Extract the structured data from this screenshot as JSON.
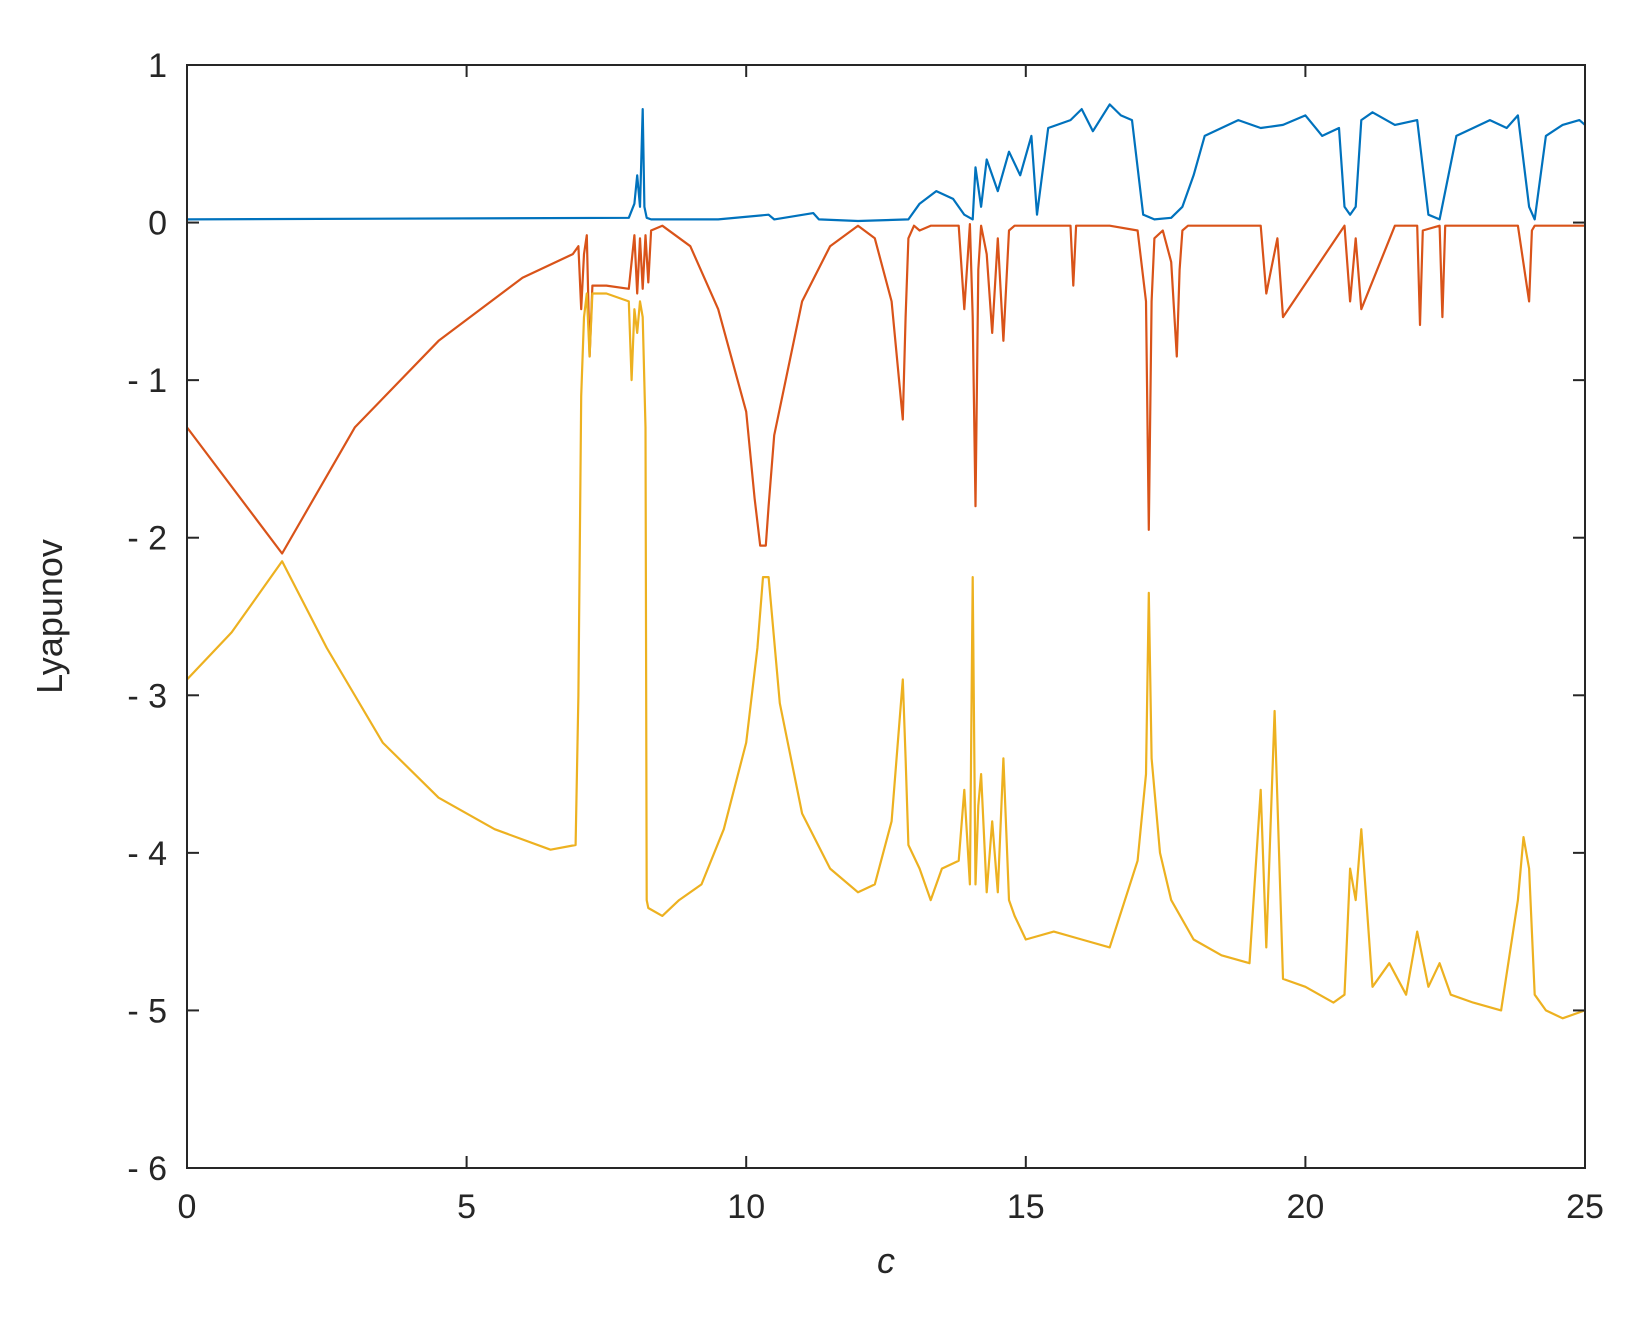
{
  "chart_data": {
    "type": "line",
    "title": "",
    "xlabel": "c",
    "ylabel": "Lyapunov",
    "xlim": [
      0,
      25
    ],
    "ylim": [
      -6,
      1
    ],
    "xticks": [
      0,
      5,
      10,
      15,
      20,
      25
    ],
    "xtick_labels": [
      "0",
      "5",
      "10",
      "15",
      "20",
      "25"
    ],
    "yticks": [
      1,
      0,
      -1,
      -2,
      -3,
      -4,
      -5,
      -6
    ],
    "ytick_labels": [
      "1",
      "0",
      "- 1",
      "- 2",
      "- 3",
      "- 4",
      "- 5",
      "- 6"
    ],
    "grid": false,
    "legend": "none",
    "series": [
      {
        "color": "#0072BD",
        "x": [
          0,
          7.9,
          8.0,
          8.05,
          8.1,
          8.15,
          8.18,
          8.22,
          8.3,
          9.5,
          10.4,
          10.5,
          11.2,
          11.3,
          12.0,
          12.9,
          13.1,
          13.4,
          13.7,
          13.9,
          14.05,
          14.1,
          14.2,
          14.3,
          14.5,
          14.7,
          14.9,
          15.1,
          15.2,
          15.4,
          15.8,
          16.0,
          16.2,
          16.5,
          16.7,
          16.9,
          17.1,
          17.3,
          17.6,
          17.8,
          18.0,
          18.2,
          18.5,
          18.8,
          19.2,
          19.6,
          20.0,
          20.3,
          20.6,
          20.7,
          20.8,
          20.9,
          21.0,
          21.2,
          21.6,
          22.0,
          22.2,
          22.4,
          22.7,
          23.0,
          23.3,
          23.6,
          23.8,
          24.0,
          24.1,
          24.3,
          24.6,
          24.9,
          25.0
        ],
        "y": [
          0.02,
          0.03,
          0.12,
          0.3,
          0.1,
          0.72,
          0.1,
          0.03,
          0.02,
          0.02,
          0.05,
          0.02,
          0.06,
          0.02,
          0.01,
          0.02,
          0.12,
          0.2,
          0.15,
          0.05,
          0.02,
          0.35,
          0.1,
          0.4,
          0.2,
          0.45,
          0.3,
          0.55,
          0.05,
          0.6,
          0.65,
          0.72,
          0.58,
          0.75,
          0.68,
          0.65,
          0.05,
          0.02,
          0.03,
          0.1,
          0.3,
          0.55,
          0.6,
          0.65,
          0.6,
          0.62,
          0.68,
          0.55,
          0.6,
          0.1,
          0.05,
          0.1,
          0.65,
          0.7,
          0.62,
          0.65,
          0.05,
          0.02,
          0.55,
          0.6,
          0.65,
          0.6,
          0.68,
          0.1,
          0.02,
          0.55,
          0.62,
          0.65,
          0.62
        ]
      },
      {
        "color": "#D95319",
        "x": [
          0,
          1.7,
          3,
          4.5,
          6,
          6.9,
          7.0,
          7.05,
          7.1,
          7.15,
          7.2,
          7.25,
          7.5,
          7.9,
          8.0,
          8.05,
          8.1,
          8.15,
          8.2,
          8.25,
          8.3,
          8.5,
          9,
          9.5,
          10,
          10.15,
          10.25,
          10.3,
          10.35,
          10.4,
          10.5,
          11,
          11.5,
          12,
          12.3,
          12.6,
          12.8,
          12.85,
          12.9,
          13.0,
          13.1,
          13.3,
          13.8,
          13.9,
          14.0,
          14.05,
          14.1,
          14.15,
          14.2,
          14.3,
          14.4,
          14.5,
          14.6,
          14.7,
          14.8,
          15.2,
          15.8,
          15.85,
          15.9,
          16.5,
          17.0,
          17.15,
          17.2,
          17.25,
          17.3,
          17.45,
          17.6,
          17.7,
          17.75,
          17.8,
          17.9,
          18.2,
          19.2,
          19.3,
          19.5,
          19.6,
          20.7,
          20.8,
          20.9,
          21.0,
          21.6,
          22.0,
          22.05,
          22.1,
          22.4,
          22.45,
          22.5,
          23.8,
          24.0,
          24.05,
          24.1,
          24.3,
          25.0
        ],
        "y": [
          -1.3,
          -2.1,
          -1.3,
          -0.75,
          -0.35,
          -0.2,
          -0.15,
          -0.55,
          -0.2,
          -0.08,
          -0.85,
          -0.4,
          -0.4,
          -0.42,
          -0.08,
          -0.45,
          -0.1,
          -0.42,
          -0.08,
          -0.38,
          -0.05,
          -0.02,
          -0.15,
          -0.55,
          -1.2,
          -1.75,
          -2.05,
          -2.05,
          -2.05,
          -1.8,
          -1.35,
          -0.5,
          -0.15,
          -0.02,
          -0.1,
          -0.5,
          -1.25,
          -0.6,
          -0.1,
          -0.02,
          -0.05,
          -0.02,
          -0.02,
          -0.55,
          -0.01,
          -0.6,
          -1.8,
          -0.3,
          -0.02,
          -0.2,
          -0.7,
          -0.1,
          -0.75,
          -0.05,
          -0.02,
          -0.02,
          -0.02,
          -0.4,
          -0.02,
          -0.02,
          -0.05,
          -0.5,
          -1.95,
          -0.5,
          -0.1,
          -0.05,
          -0.25,
          -0.85,
          -0.3,
          -0.05,
          -0.02,
          -0.02,
          -0.02,
          -0.45,
          -0.1,
          -0.6,
          -0.02,
          -0.5,
          -0.1,
          -0.55,
          -0.02,
          -0.02,
          -0.65,
          -0.05,
          -0.02,
          -0.6,
          -0.02,
          -0.02,
          -0.5,
          -0.05,
          -0.02,
          -0.02,
          -0.02
        ]
      },
      {
        "color": "#EDB120",
        "x": [
          0,
          0.8,
          1.7,
          2.5,
          3.5,
          4.5,
          5.5,
          6.5,
          6.95,
          7.0,
          7.05,
          7.1,
          7.15,
          7.2,
          7.25,
          7.5,
          7.9,
          7.95,
          8.0,
          8.05,
          8.1,
          8.15,
          8.2,
          8.22,
          8.25,
          8.5,
          8.8,
          9.2,
          9.6,
          10.0,
          10.2,
          10.3,
          10.4,
          10.6,
          11.0,
          11.5,
          12.0,
          12.3,
          12.6,
          12.8,
          12.85,
          12.9,
          13.1,
          13.3,
          13.5,
          13.8,
          13.9,
          14.0,
          14.05,
          14.1,
          14.15,
          14.2,
          14.3,
          14.4,
          14.5,
          14.6,
          14.7,
          14.8,
          15.0,
          15.5,
          16.0,
          16.5,
          17.0,
          17.15,
          17.2,
          17.25,
          17.4,
          17.6,
          18.0,
          18.5,
          19.0,
          19.2,
          19.3,
          19.45,
          19.6,
          20.0,
          20.5,
          20.7,
          20.8,
          20.9,
          21.0,
          21.2,
          21.5,
          21.8,
          22.0,
          22.2,
          22.4,
          22.6,
          23.0,
          23.5,
          23.8,
          23.9,
          24.0,
          24.1,
          24.3,
          24.6,
          25.0
        ],
        "y": [
          -2.9,
          -2.6,
          -2.15,
          -2.7,
          -3.3,
          -3.65,
          -3.85,
          -3.98,
          -3.95,
          -3.0,
          -1.1,
          -0.6,
          -0.45,
          -0.85,
          -0.45,
          -0.45,
          -0.5,
          -1.0,
          -0.55,
          -0.7,
          -0.5,
          -0.6,
          -1.3,
          -4.3,
          -4.35,
          -4.4,
          -4.3,
          -4.2,
          -3.85,
          -3.3,
          -2.7,
          -2.25,
          -2.25,
          -3.05,
          -3.75,
          -4.1,
          -4.25,
          -4.2,
          -3.8,
          -2.9,
          -3.4,
          -3.95,
          -4.1,
          -4.3,
          -4.1,
          -4.05,
          -3.6,
          -4.2,
          -2.25,
          -4.2,
          -3.7,
          -3.5,
          -4.25,
          -3.8,
          -4.25,
          -3.4,
          -4.3,
          -4.4,
          -4.55,
          -4.5,
          -4.55,
          -4.6,
          -4.05,
          -3.5,
          -2.35,
          -3.4,
          -4.0,
          -4.3,
          -4.55,
          -4.65,
          -4.7,
          -3.6,
          -4.6,
          -3.1,
          -4.8,
          -4.85,
          -4.95,
          -4.9,
          -4.1,
          -4.3,
          -3.85,
          -4.85,
          -4.7,
          -4.9,
          -4.5,
          -4.85,
          -4.7,
          -4.9,
          -4.95,
          -5.0,
          -4.3,
          -3.9,
          -4.1,
          -4.9,
          -5.0,
          -5.05,
          -5.0
        ]
      }
    ]
  }
}
